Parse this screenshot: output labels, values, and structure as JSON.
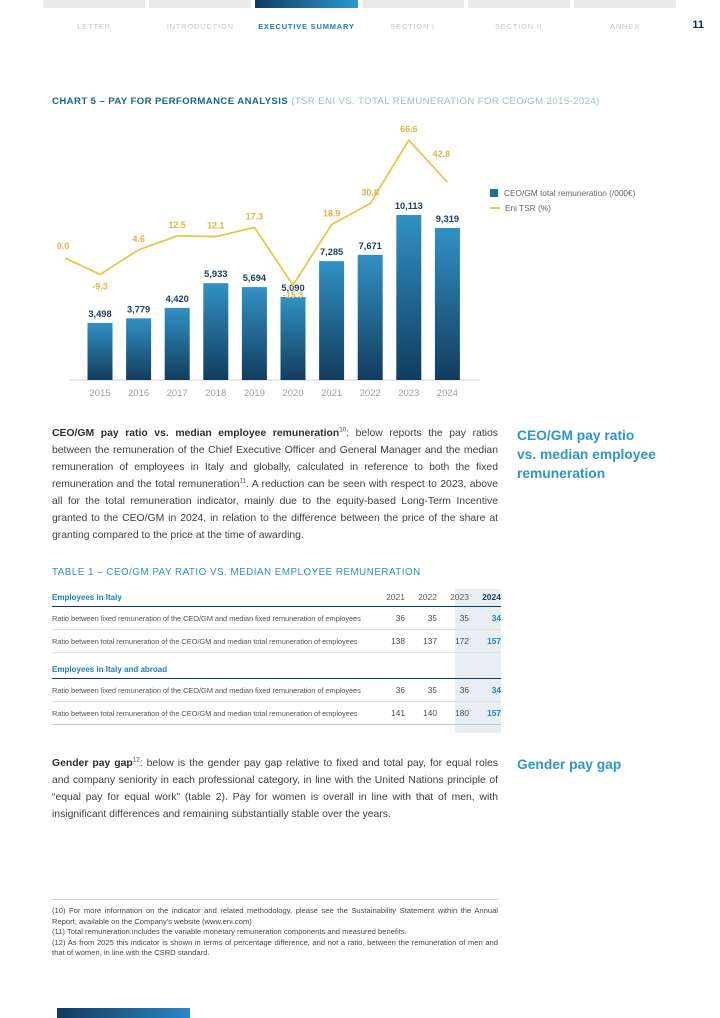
{
  "nav": {
    "tabs": [
      {
        "label": "LETTER",
        "active": false
      },
      {
        "label": "INTRODUCTION",
        "active": false
      },
      {
        "label": "EXECUTIVE SUMMARY",
        "active": true
      },
      {
        "label": "SECTION I",
        "active": false
      },
      {
        "label": "SECTION II",
        "active": false
      },
      {
        "label": "ANNEX",
        "active": false
      }
    ],
    "page_number": "11"
  },
  "chart": {
    "title": "CHART 5 – PAY FOR PERFORMANCE ANALYSIS",
    "subtitle": " (TSR ENI VS. TOTAL REMUNERATION FOR CEO/GM 2015-2024)",
    "legend": [
      {
        "label": "CEO/GM total remuneration (/000€)",
        "marker": "bar-swatch-icon",
        "color": "#1d6f9d"
      },
      {
        "label": "Eni TSR (%)",
        "marker": "line-swatch-icon",
        "color": "#e8c64d"
      }
    ]
  },
  "chart_data": {
    "type": "bar+line",
    "categories": [
      "2015",
      "2016",
      "2017",
      "2018",
      "2019",
      "2020",
      "2021",
      "2022",
      "2023",
      "2024"
    ],
    "series": [
      {
        "name": "CEO/GM total remuneration (/000€)",
        "type": "bar",
        "values": [
          3498,
          3779,
          4420,
          5933,
          5694,
          5090,
          7285,
          7671,
          10113,
          9319
        ],
        "labels": [
          "3,498",
          "3,779",
          "4,420",
          "5,933",
          "5,694",
          "5,090",
          "7,285",
          "7,671",
          "10,113",
          "9,319"
        ]
      },
      {
        "name": "Eni TSR (%)",
        "type": "line",
        "start_value": 0.0,
        "start_label": "0.0",
        "values": [
          -9.3,
          4.6,
          12.5,
          12.1,
          17.3,
          -15.3,
          18.9,
          30.8,
          66.6,
          42.8
        ],
        "labels": [
          "-9.3",
          "4.6",
          "12.5",
          "12.1",
          "17.3",
          "-15.3",
          "18.9",
          "30.8",
          "66.6",
          "42.8"
        ]
      }
    ],
    "ylabel": "",
    "xlabel": "",
    "grid": false,
    "legend_position": "right",
    "bar_gradient": [
      "#3191c4",
      "#123c5e"
    ],
    "line_color": "#e8c64d"
  },
  "pay_ratio": {
    "bold_lead": "CEO/GM pay ratio vs. median employee remuneration",
    "sup1": "10",
    "text_a": ": below reports the pay ratios between the remuneration of the Chief Executive Officer and General Manager and the median remuneration of employees in Italy and globally, calculated in reference to both the fixed remuneration and the total remuneration",
    "sup2": "11",
    "text_b": ". A reduction can be seen with respect to 2023, above all for the total remuneration indicator, mainly due to the equity-based Long-Term Incentive granted to the CEO/GM in 2024, in relation to the difference between the price of the share at granting compared to the price at the time of awarding.",
    "side_heading": "CEO/GM pay ratio\nvs. median employee\nremuneration"
  },
  "table": {
    "title": "TABLE 1 – CEO/GM PAY RATIO VS. MEDIAN EMPLOYEE REMUNERATION",
    "year_columns": [
      "2021",
      "2022",
      "2023",
      "2024"
    ],
    "highlight_column": "2024",
    "sections": [
      {
        "header": "Employees in Italy",
        "rows": [
          {
            "label": "Ratio between fixed remuneration of the CEO/GM and median fixed remuneration of employees",
            "values": [
              "36",
              "35",
              "35",
              "34"
            ]
          },
          {
            "label": "Ratio between total remuneration of the CEO/GM and median total remuneration of employees",
            "values": [
              "138",
              "137",
              "172",
              "157"
            ]
          }
        ]
      },
      {
        "header": "Employees in Italy and abroad",
        "rows": [
          {
            "label": "Ratio between fixed remuneration of the CEO/GM and median fixed remuneration of employees",
            "values": [
              "36",
              "35",
              "36",
              "34"
            ]
          },
          {
            "label": "Ratio between total remuneration of the CEO/GM and median total remuneration of employees",
            "values": [
              "141",
              "140",
              "180",
              "157"
            ]
          }
        ]
      }
    ]
  },
  "gender": {
    "bold_lead": "Gender pay gap",
    "sup": "12",
    "text": ": below is the gender pay gap relative to fixed and total pay, for equal roles and company seniority in each professional category, in line with the United Nations principle of “equal pay for equal work” (table 2). Pay for women is overall in line with that of men, with insignificant differences and remaining substantially stable over the years.",
    "side_heading": "Gender pay gap"
  },
  "footnotes": [
    "(10) For more information on the indicator and related methodology, please see the Sustainability Statement within the Annual Report, available on the Company's website (www.eni.com)",
    "(11) Total remuneration includes the variable monetary remuneration components and measured benefits.",
    "(12) As from 2025 this indicator is shown in terms of percentage difference, and not a ratio, between the remuneration of men and that of women, in line with the CSRD standard."
  ],
  "colors": {
    "accent_blue": "#1d7fb5",
    "dark_navy": "#123c5e",
    "tsr_gold": "#e8c64d",
    "table_highlight": "#e9eef2"
  }
}
